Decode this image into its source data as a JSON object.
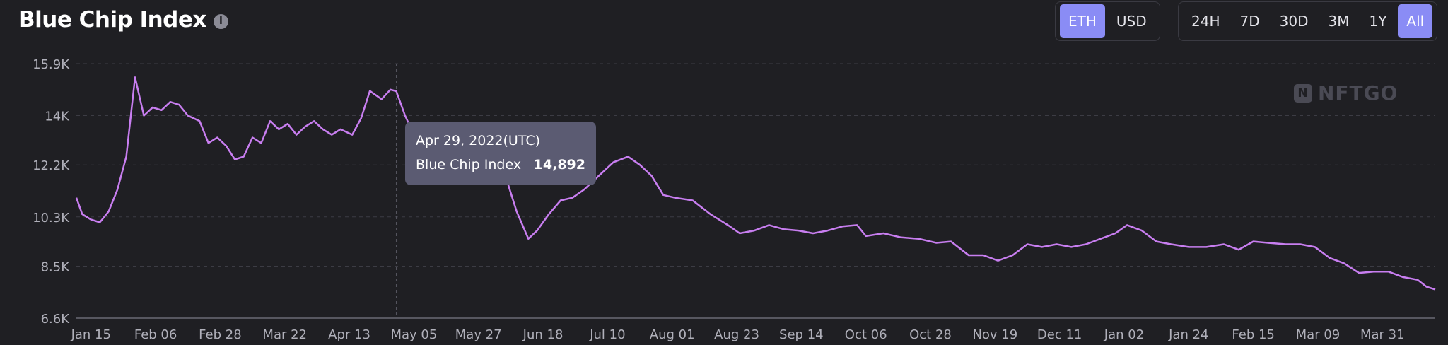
{
  "header": {
    "title": "Blue Chip Index",
    "info_icon": "info-icon"
  },
  "currency_toggle": {
    "options": [
      "ETH",
      "USD"
    ],
    "selected": "ETH"
  },
  "range_toggle": {
    "options": [
      "24H",
      "7D",
      "30D",
      "3M",
      "1Y",
      "All"
    ],
    "selected": "All"
  },
  "watermark": {
    "text": "NFTGO",
    "logo_glyph": "N"
  },
  "tooltip": {
    "date": "Apr 29, 2022(UTC)",
    "label": "Blue Chip Index",
    "value": "14,892"
  },
  "colors": {
    "background": "#1f1f23",
    "line": "#c87ef0",
    "accent": "#8a8cf5",
    "grid": "#3c3c44",
    "tooltip_bg": "#5b5b72"
  },
  "chart_data": {
    "type": "line",
    "title": "Blue Chip Index",
    "xlabel": "",
    "ylabel": "",
    "x_ticks": [
      "Jan 15",
      "Feb 06",
      "Feb 28",
      "Mar 22",
      "Apr 13",
      "May 05",
      "May 27",
      "Jun 18",
      "Jul 10",
      "Aug 01",
      "Aug 23",
      "Sep 14",
      "Oct 06",
      "Oct 28",
      "Nov 19",
      "Dec 11",
      "Jan 02",
      "Jan 24",
      "Feb 15",
      "Mar 09",
      "Mar 31"
    ],
    "y_ticks": [
      6600,
      8500,
      10300,
      12200,
      14000,
      15900
    ],
    "y_tick_labels": [
      "6.6K",
      "8.5K",
      "10.3K",
      "12.2K",
      "14K",
      "15.9K"
    ],
    "ylim": [
      6600,
      15900
    ],
    "x_range": [
      "2022-01-10",
      "2023-04-18"
    ],
    "grid": true,
    "crosshair_date": "2022-04-29",
    "series": [
      {
        "name": "Blue Chip Index",
        "points": [
          [
            "2022-01-10",
            11000
          ],
          [
            "2022-01-12",
            10400
          ],
          [
            "2022-01-15",
            10200
          ],
          [
            "2022-01-18",
            10100
          ],
          [
            "2022-01-21",
            10500
          ],
          [
            "2022-01-24",
            11300
          ],
          [
            "2022-01-27",
            12500
          ],
          [
            "2022-01-30",
            15400
          ],
          [
            "2022-02-02",
            14000
          ],
          [
            "2022-02-05",
            14300
          ],
          [
            "2022-02-08",
            14200
          ],
          [
            "2022-02-11",
            14500
          ],
          [
            "2022-02-14",
            14400
          ],
          [
            "2022-02-17",
            14000
          ],
          [
            "2022-02-21",
            13800
          ],
          [
            "2022-02-24",
            13000
          ],
          [
            "2022-02-27",
            13200
          ],
          [
            "2022-03-02",
            12900
          ],
          [
            "2022-03-05",
            12400
          ],
          [
            "2022-03-08",
            12500
          ],
          [
            "2022-03-11",
            13200
          ],
          [
            "2022-03-14",
            13000
          ],
          [
            "2022-03-17",
            13800
          ],
          [
            "2022-03-20",
            13500
          ],
          [
            "2022-03-23",
            13700
          ],
          [
            "2022-03-26",
            13300
          ],
          [
            "2022-03-29",
            13600
          ],
          [
            "2022-04-01",
            13800
          ],
          [
            "2022-04-04",
            13500
          ],
          [
            "2022-04-07",
            13300
          ],
          [
            "2022-04-10",
            13500
          ],
          [
            "2022-04-14",
            13300
          ],
          [
            "2022-04-17",
            13900
          ],
          [
            "2022-04-20",
            14900
          ],
          [
            "2022-04-24",
            14600
          ],
          [
            "2022-04-27",
            14950
          ],
          [
            "2022-04-29",
            14892
          ],
          [
            "2022-05-02",
            14000
          ],
          [
            "2022-05-05",
            13300
          ],
          [
            "2022-05-08",
            12900
          ],
          [
            "2022-05-10",
            11600
          ],
          [
            "2022-05-14",
            12000
          ],
          [
            "2022-05-18",
            12400
          ],
          [
            "2022-05-24",
            12300
          ],
          [
            "2022-05-30",
            12300
          ],
          [
            "2022-06-04",
            12200
          ],
          [
            "2022-06-09",
            10500
          ],
          [
            "2022-06-13",
            9500
          ],
          [
            "2022-06-16",
            9800
          ],
          [
            "2022-06-20",
            10400
          ],
          [
            "2022-06-24",
            10900
          ],
          [
            "2022-06-28",
            11000
          ],
          [
            "2022-07-02",
            11300
          ],
          [
            "2022-07-07",
            11800
          ],
          [
            "2022-07-12",
            12300
          ],
          [
            "2022-07-17",
            12500
          ],
          [
            "2022-07-21",
            12200
          ],
          [
            "2022-07-25",
            11800
          ],
          [
            "2022-07-29",
            11100
          ],
          [
            "2022-08-02",
            11000
          ],
          [
            "2022-08-08",
            10900
          ],
          [
            "2022-08-14",
            10400
          ],
          [
            "2022-08-20",
            10000
          ],
          [
            "2022-08-24",
            9700
          ],
          [
            "2022-08-29",
            9800
          ],
          [
            "2022-09-03",
            10000
          ],
          [
            "2022-09-08",
            9850
          ],
          [
            "2022-09-13",
            9800
          ],
          [
            "2022-09-18",
            9700
          ],
          [
            "2022-09-23",
            9800
          ],
          [
            "2022-09-28",
            9950
          ],
          [
            "2022-10-03",
            10000
          ],
          [
            "2022-10-06",
            9600
          ],
          [
            "2022-10-12",
            9700
          ],
          [
            "2022-10-18",
            9550
          ],
          [
            "2022-10-24",
            9500
          ],
          [
            "2022-10-30",
            9350
          ],
          [
            "2022-11-04",
            9400
          ],
          [
            "2022-11-10",
            8900
          ],
          [
            "2022-11-15",
            8900
          ],
          [
            "2022-11-20",
            8700
          ],
          [
            "2022-11-25",
            8900
          ],
          [
            "2022-11-30",
            9300
          ],
          [
            "2022-12-05",
            9200
          ],
          [
            "2022-12-10",
            9300
          ],
          [
            "2022-12-15",
            9200
          ],
          [
            "2022-12-20",
            9300
          ],
          [
            "2022-12-25",
            9500
          ],
          [
            "2022-12-30",
            9700
          ],
          [
            "2023-01-03",
            10000
          ],
          [
            "2023-01-08",
            9800
          ],
          [
            "2023-01-13",
            9400
          ],
          [
            "2023-01-18",
            9300
          ],
          [
            "2023-01-24",
            9200
          ],
          [
            "2023-01-30",
            9200
          ],
          [
            "2023-02-05",
            9300
          ],
          [
            "2023-02-10",
            9100
          ],
          [
            "2023-02-15",
            9400
          ],
          [
            "2023-02-20",
            9350
          ],
          [
            "2023-02-26",
            9300
          ],
          [
            "2023-03-03",
            9300
          ],
          [
            "2023-03-08",
            9200
          ],
          [
            "2023-03-13",
            8800
          ],
          [
            "2023-03-18",
            8600
          ],
          [
            "2023-03-23",
            8250
          ],
          [
            "2023-03-28",
            8300
          ],
          [
            "2023-04-02",
            8300
          ],
          [
            "2023-04-07",
            8100
          ],
          [
            "2023-04-12",
            8000
          ],
          [
            "2023-04-15",
            7750
          ],
          [
            "2023-04-18",
            7650
          ]
        ]
      }
    ]
  }
}
